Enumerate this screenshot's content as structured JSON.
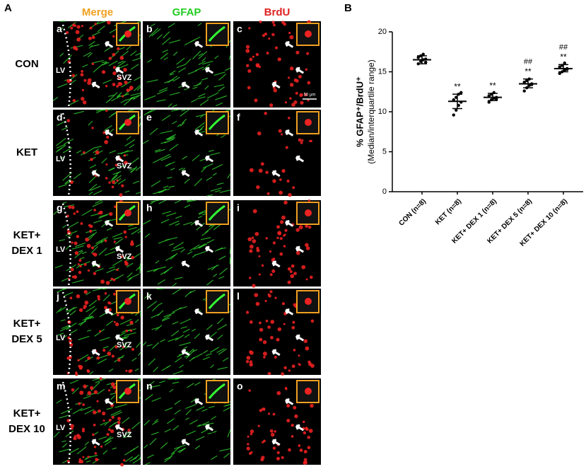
{
  "panel_a": {
    "label": "A",
    "columns": [
      "Merge",
      "GFAP",
      "BrdU"
    ],
    "rows": [
      [
        "CON"
      ],
      [
        "KET"
      ],
      [
        "KET+",
        "DEX 1"
      ],
      [
        "KET+",
        "DEX 5"
      ],
      [
        "KET+",
        "DEX 10"
      ]
    ],
    "panels": [
      [
        "a",
        "b",
        "c"
      ],
      [
        "d",
        "e",
        "f"
      ],
      [
        "g",
        "h",
        "i"
      ],
      [
        "j",
        "k",
        "l"
      ],
      [
        "m",
        "n",
        "o"
      ]
    ],
    "lv": "LV",
    "svz": "SVZ",
    "scale_bar": "50 μm"
  },
  "chart_data": {
    "type": "scatter",
    "panel_label": "B",
    "y_label": [
      "% GFAP⁺/BrdU⁺",
      "(Median/interquartile range)"
    ],
    "categories": [
      "CON (n=8)",
      "KET (n=8)",
      "KET+ DEX 1 (n=8)",
      "KET+ DEX 5 (n=8)",
      "KET+ DEX 10 (n=8)"
    ],
    "medians": [
      16.5,
      11.3,
      11.8,
      13.5,
      15.4
    ],
    "q1": [
      16.0,
      10.4,
      11.4,
      13.0,
      15.0
    ],
    "q3": [
      17.0,
      12.2,
      12.3,
      14.1,
      15.9
    ],
    "points": [
      [
        16.0,
        16.3,
        16.5,
        16.6,
        16.8,
        17.0,
        17.2,
        16.2
      ],
      [
        9.6,
        10.2,
        10.8,
        11.2,
        11.5,
        11.8,
        12.2,
        12.4
      ],
      [
        11.2,
        11.5,
        11.7,
        11.8,
        12.0,
        12.2,
        12.4,
        11.6
      ],
      [
        12.6,
        13.0,
        13.3,
        13.5,
        13.7,
        13.9,
        14.1,
        13.4
      ],
      [
        14.8,
        15.0,
        15.2,
        15.4,
        15.6,
        15.8,
        16.1,
        15.3
      ]
    ],
    "stars": [
      null,
      "**",
      "**",
      "**",
      "**"
    ],
    "hashes": [
      null,
      null,
      null,
      "##",
      "##"
    ],
    "color": "#000000",
    "ylim": [
      0,
      20
    ],
    "yticks": [
      0,
      5,
      10,
      15,
      20
    ]
  }
}
